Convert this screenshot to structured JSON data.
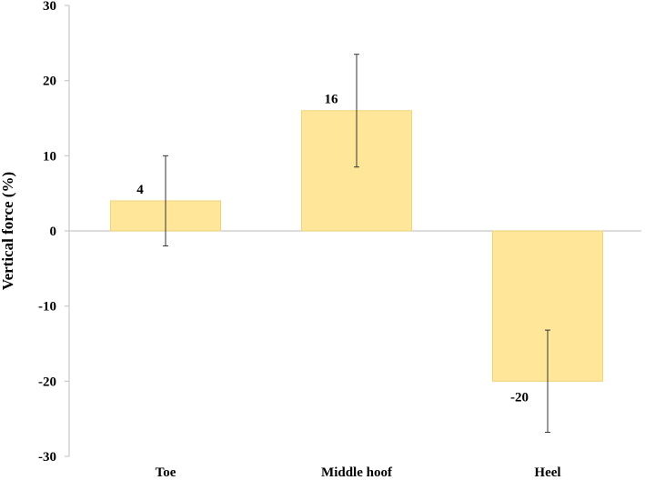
{
  "chart_data": {
    "type": "bar",
    "title": "",
    "xlabel": "",
    "ylabel": "Vertical force (%)",
    "categories": [
      "Toe",
      "Middle hoof",
      "Heel"
    ],
    "values": [
      4,
      16,
      -20
    ],
    "data_labels": [
      "4",
      "16",
      "-20"
    ],
    "error_bars": [
      {
        "low": -2,
        "high": 10
      },
      {
        "low": 8.5,
        "high": 23.5
      },
      {
        "low": -26.8,
        "high": -13.2
      }
    ],
    "ylim": [
      -30,
      30
    ],
    "yticks": [
      -30,
      -20,
      -10,
      0,
      10,
      20,
      30
    ],
    "ytick_labels": [
      "-30",
      "-20",
      "-10",
      "0",
      "10",
      "20",
      "30"
    ],
    "grid": false,
    "legend": "none",
    "colors": {
      "bar_fill": "#FFE699",
      "bar_stroke": "#F2D27A",
      "axis": "#C8C8C8",
      "error_bar": "#333333"
    }
  }
}
